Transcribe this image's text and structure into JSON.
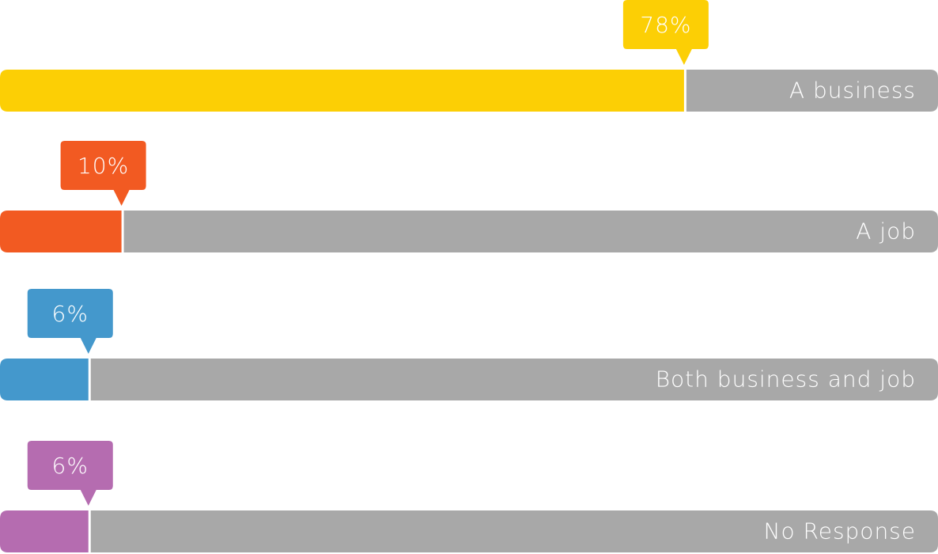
{
  "chart_data": {
    "type": "bar",
    "categories": [
      "A business",
      "A job",
      "Both business and job",
      "No Response"
    ],
    "values": [
      78,
      10,
      6,
      6
    ],
    "value_labels": [
      "78%",
      "10%",
      "6%",
      "6%"
    ],
    "colors": [
      "#fccf05",
      "#f25a22",
      "#4498cc",
      "#b56cb0"
    ],
    "track_color": "#a8a8a8",
    "xlim": [
      0,
      100
    ]
  }
}
